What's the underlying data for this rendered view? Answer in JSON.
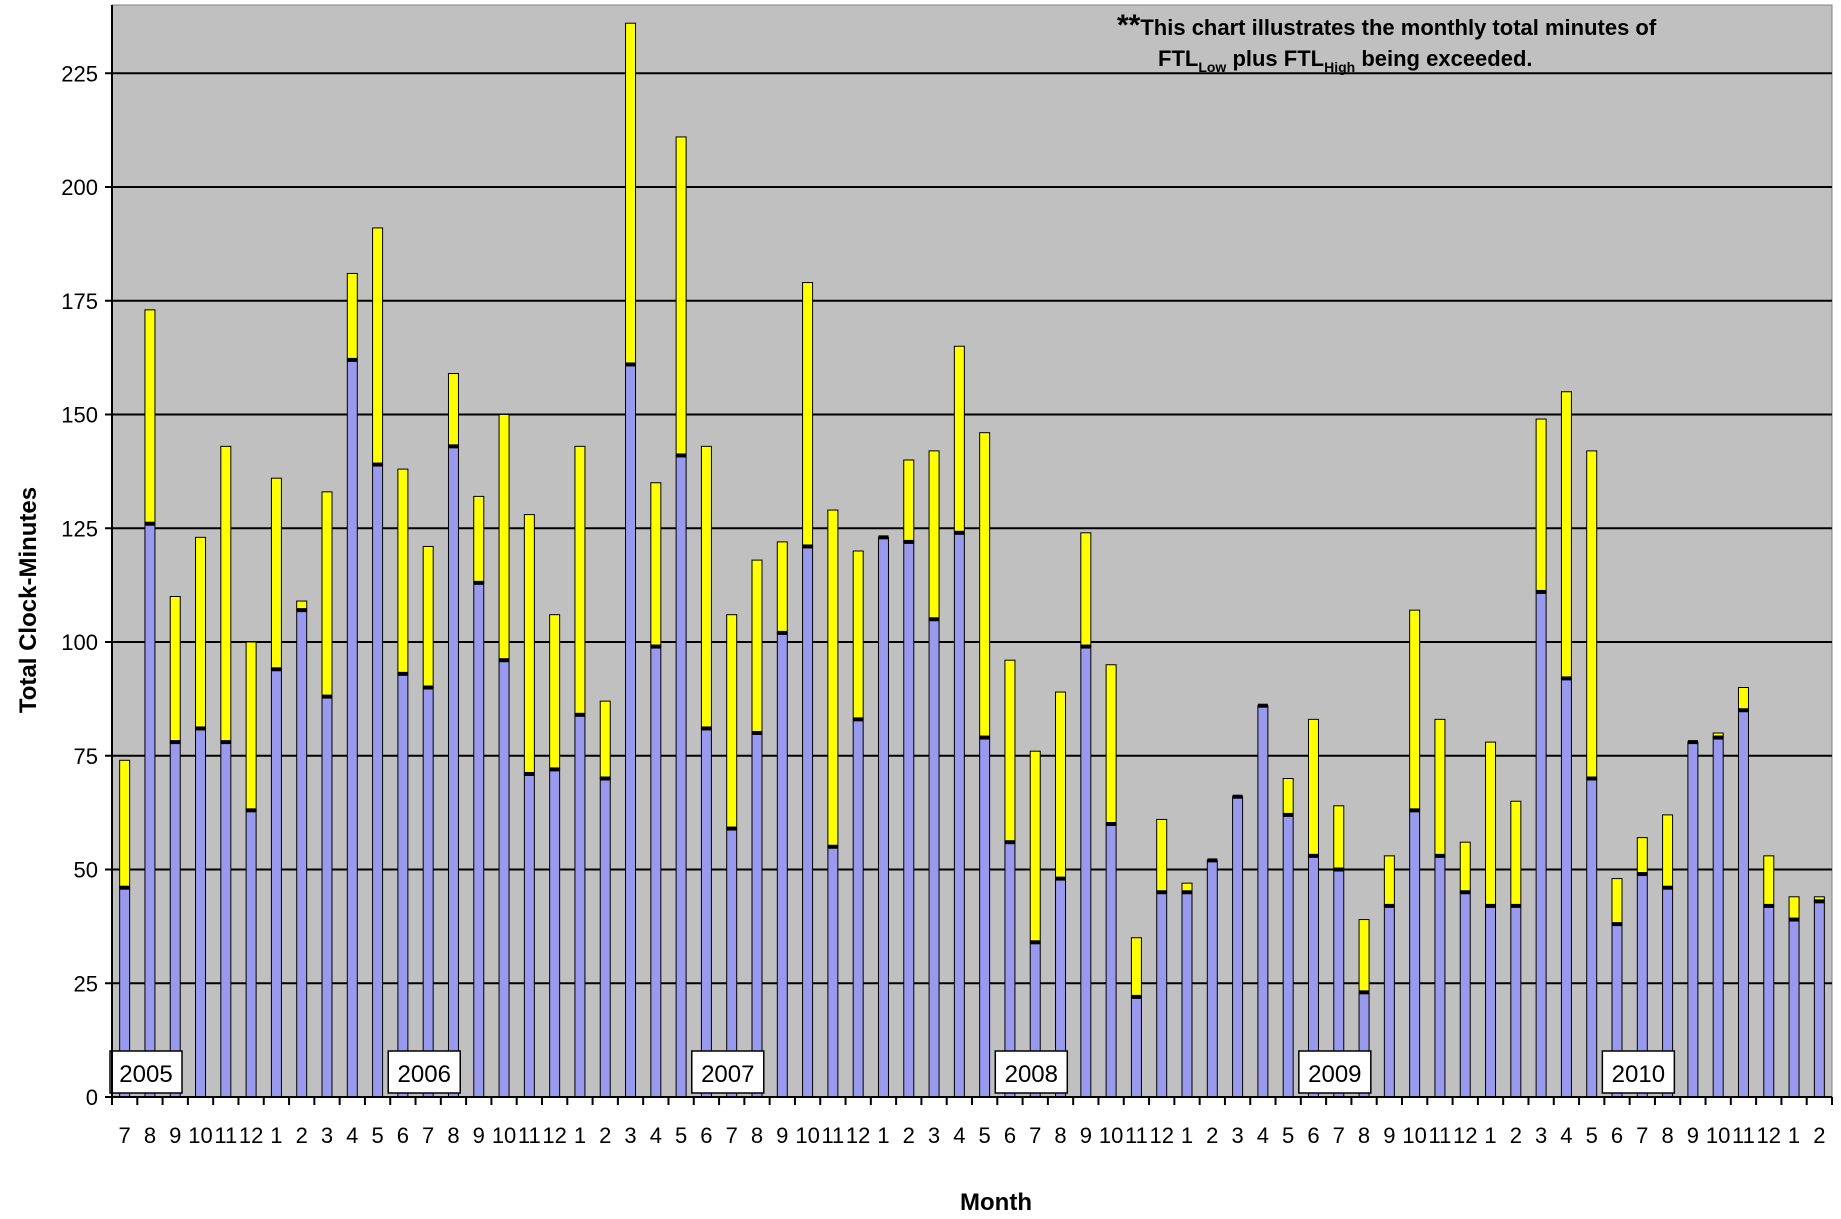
{
  "chart_data": {
    "type": "bar",
    "stacked": true,
    "ylabel": "Total Clock-Minutes",
    "xlabel": "Month",
    "ylim": [
      0,
      240
    ],
    "yticks": [
      0,
      25,
      50,
      75,
      100,
      125,
      150,
      175,
      200,
      225
    ],
    "grid": true,
    "annotation": {
      "prefix": "**",
      "line1": "This chart illustrates the monthly total minutes of",
      "ftl": "FTL",
      "low": "Low",
      "plus": " plus ",
      "high": "High",
      "tail": " being exceeded."
    },
    "colors": {
      "lower": "#9999ee",
      "upper": "#ffff00",
      "plot_bg": "#c0c0c0",
      "divider": "#000000"
    },
    "categories": [
      "7",
      "8",
      "9",
      "10",
      "11",
      "12",
      "1",
      "2",
      "3",
      "4",
      "5",
      "6",
      "7",
      "8",
      "9",
      "10",
      "11",
      "12",
      "1",
      "2",
      "3",
      "4",
      "5",
      "6",
      "7",
      "8",
      "9",
      "10",
      "11",
      "12",
      "1",
      "2",
      "3",
      "4",
      "5",
      "6",
      "7",
      "8",
      "9",
      "10",
      "11",
      "12",
      "1",
      "2",
      "3",
      "4",
      "5",
      "6",
      "7",
      "8",
      "9",
      "10",
      "11",
      "12",
      "1",
      "2",
      "3",
      "4",
      "5",
      "6",
      "7",
      "8",
      "9",
      "10",
      "11",
      "12",
      "1",
      "2"
    ],
    "year_labels": [
      {
        "label": "2005",
        "index": 0
      },
      {
        "label": "2006",
        "index": 11
      },
      {
        "label": "2007",
        "index": 23
      },
      {
        "label": "2008",
        "index": 35
      },
      {
        "label": "2009",
        "index": 47
      },
      {
        "label": "2010",
        "index": 59
      }
    ],
    "series": [
      {
        "name": "FTL Low",
        "values": [
          46,
          126,
          78,
          81,
          78,
          63,
          94,
          107,
          88,
          162,
          139,
          93,
          90,
          143,
          113,
          96,
          71,
          72,
          84,
          70,
          161,
          99,
          141,
          81,
          59,
          80,
          102,
          121,
          55,
          83,
          123,
          122,
          105,
          124,
          79,
          56,
          34,
          48,
          99,
          60,
          22,
          45,
          45,
          52,
          66,
          86,
          62,
          53,
          50,
          23,
          42,
          63,
          53,
          45,
          42,
          42,
          111,
          92,
          70,
          38,
          49,
          46,
          78,
          79,
          85,
          42,
          39,
          43
        ]
      },
      {
        "name": "FTL High",
        "values": [
          28,
          47,
          32,
          42,
          65,
          37,
          42,
          2,
          45,
          19,
          52,
          45,
          31,
          16,
          19,
          54,
          57,
          34,
          59,
          17,
          75,
          36,
          70,
          62,
          47,
          38,
          20,
          58,
          74,
          37,
          0,
          18,
          37,
          41,
          67,
          40,
          42,
          41,
          25,
          35,
          13,
          16,
          2,
          0,
          0,
          0,
          8,
          30,
          14,
          16,
          11,
          44,
          30,
          11,
          36,
          23,
          38,
          63,
          72,
          10,
          8,
          16,
          0,
          1,
          5,
          11,
          5,
          1
        ]
      }
    ]
  }
}
